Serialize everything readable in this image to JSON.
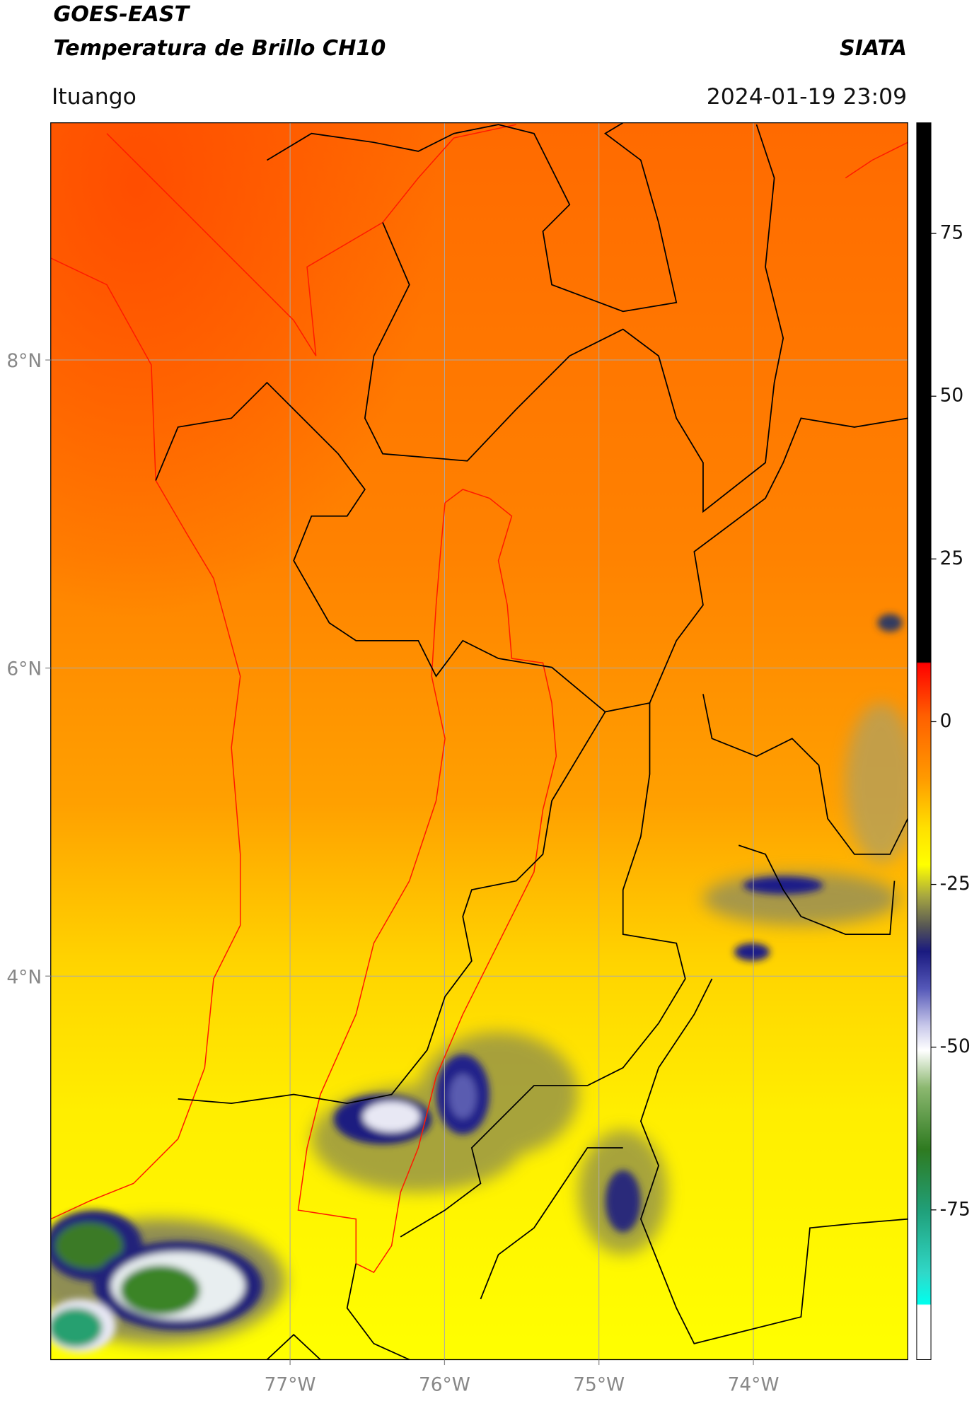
{
  "header": {
    "title": "GOES-EAST",
    "subtitle": "Temperatura de Brillo CH10",
    "source": "SIATA",
    "location": "Ituango",
    "datetime": "2024-01-19 23:09"
  },
  "map": {
    "xlim": [
      -78.55,
      -73.0
    ],
    "ylim": [
      1.51,
      9.54
    ],
    "xticks": [
      {
        "value": -77,
        "label": "77°W"
      },
      {
        "value": -76,
        "label": "76°W"
      },
      {
        "value": -75,
        "label": "75°W"
      },
      {
        "value": -74,
        "label": "74°W"
      }
    ],
    "yticks": [
      {
        "value": 8,
        "label": "8°N"
      },
      {
        "value": 6,
        "label": "6°N"
      },
      {
        "value": 4,
        "label": "4°N"
      }
    ],
    "grid": true
  },
  "colorbar": {
    "lim": [
      -98,
      92
    ],
    "ticks": [
      75,
      50,
      25,
      0,
      -25,
      -50,
      -75
    ]
  }
}
